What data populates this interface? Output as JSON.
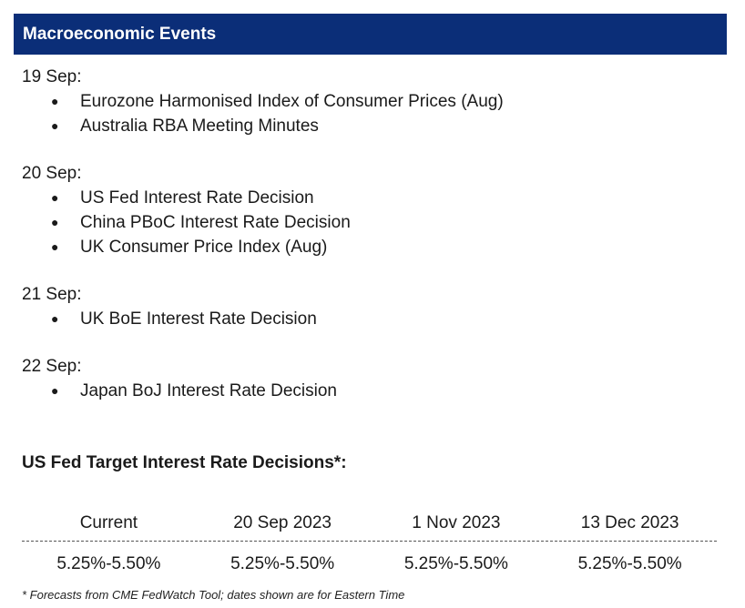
{
  "header": {
    "title": "Macroeconomic Events"
  },
  "events": [
    {
      "date": "19 Sep:",
      "items": [
        "Eurozone Harmonised Index of Consumer Prices (Aug)",
        "Australia RBA Meeting Minutes"
      ]
    },
    {
      "date": "20 Sep:",
      "items": [
        "US Fed Interest Rate Decision",
        "China PBoC Interest Rate Decision",
        "UK Consumer Price Index (Aug)"
      ]
    },
    {
      "date": "21 Sep:",
      "items": [
        "UK BoE Interest Rate Decision"
      ]
    },
    {
      "date": "22 Sep:",
      "items": [
        "Japan BoJ Interest Rate Decision"
      ]
    }
  ],
  "fed": {
    "title": "US Fed Target Interest Rate Decisions*:",
    "columns": [
      "Current",
      "20 Sep 2023",
      "1 Nov 2023",
      "13 Dec 2023"
    ],
    "values": [
      "5.25%-5.50%",
      "5.25%-5.50%",
      "5.25%-5.50%",
      "5.25%-5.50%"
    ]
  },
  "footnote": "* Forecasts from CME FedWatch Tool; dates shown are for Eastern Time",
  "colors": {
    "header_bg": "#0b2e78",
    "header_text": "#ffffff"
  }
}
